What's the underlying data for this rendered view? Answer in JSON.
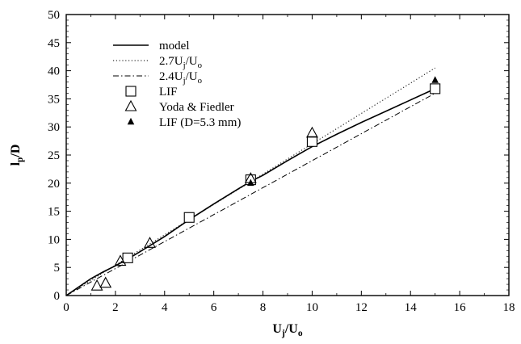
{
  "chart_data": {
    "type": "scatter",
    "xlabel": {
      "base": "U",
      "sub1": "j",
      "mid": "/U",
      "sub2": "o"
    },
    "ylabel": {
      "base": "l",
      "sub1": "p",
      "mid": "/D"
    },
    "xlim": [
      0,
      18
    ],
    "ylim": [
      0,
      50
    ],
    "xticks": [
      0,
      2,
      4,
      6,
      8,
      10,
      12,
      14,
      16,
      18
    ],
    "yticks": [
      0,
      5,
      10,
      15,
      20,
      25,
      30,
      35,
      40,
      45,
      50
    ],
    "grid": false,
    "legend_position": "top-left",
    "series": [
      {
        "name": "model",
        "kind": "line",
        "style": "solid",
        "x": [
          0,
          0.5,
          1.0,
          1.5,
          2.0,
          2.5,
          3.0,
          4.0,
          5.0,
          6.0,
          7.0,
          7.5,
          8.0,
          9.0,
          10.0,
          11.0,
          12.0,
          13.0,
          14.0,
          15.0
        ],
        "y": [
          0,
          1.5,
          3.0,
          4.2,
          5.3,
          6.5,
          7.8,
          10.5,
          13.5,
          16.3,
          19.0,
          20.3,
          21.4,
          24.0,
          26.5,
          28.7,
          30.8,
          32.8,
          34.8,
          36.8
        ]
      },
      {
        "name": {
          "base": "2.7U",
          "sub1": "j",
          "mid": "/U",
          "sub2": "o"
        },
        "kind": "line",
        "style": "dotted",
        "x": [
          0,
          15
        ],
        "y": [
          0,
          40.5
        ]
      },
      {
        "name": {
          "base": "2.4U",
          "sub1": "j",
          "mid": "/U",
          "sub2": "o"
        },
        "kind": "line",
        "style": "dashdot",
        "x": [
          0,
          15
        ],
        "y": [
          0,
          36.0
        ]
      },
      {
        "name": "LIF",
        "kind": "marker",
        "marker": "square-open",
        "x": [
          2.5,
          5.0,
          7.5,
          10.0,
          15.0
        ],
        "y": [
          6.7,
          13.9,
          20.6,
          27.4,
          36.8
        ]
      },
      {
        "name": "Yoda & Fiedler",
        "kind": "marker",
        "marker": "triangle-open",
        "x": [
          1.25,
          1.6,
          2.2,
          3.4,
          7.5,
          10.0
        ],
        "y": [
          1.7,
          2.2,
          6.1,
          9.3,
          20.8,
          28.9
        ]
      },
      {
        "name": "LIF (D=5.3 mm)",
        "kind": "marker",
        "marker": "triangle-filled",
        "x": [
          7.5,
          15.0
        ],
        "y": [
          20.0,
          38.3
        ]
      }
    ]
  }
}
